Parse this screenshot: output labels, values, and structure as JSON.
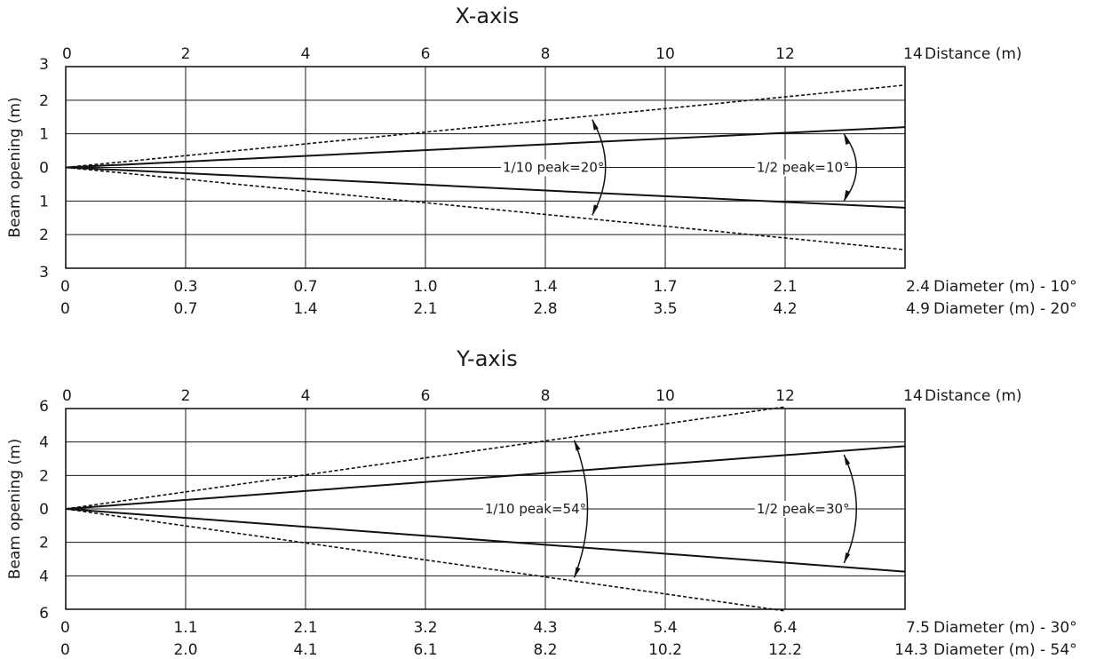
{
  "chart_data": [
    {
      "type": "line",
      "title": "X-axis",
      "top_axis": {
        "ticks": [
          0,
          2,
          4,
          6,
          8,
          10,
          12,
          14
        ],
        "label": "Distance (m)",
        "range": [
          0,
          14
        ]
      },
      "left_axis": {
        "ticks": [
          "3",
          "2",
          "1",
          "0",
          "1",
          "2",
          "3"
        ],
        "label": "Beam opening (m)",
        "range": [
          -3,
          3
        ]
      },
      "bottom_rows": [
        {
          "values": [
            "0",
            "0.3",
            "0.7",
            "1.0",
            "1.4",
            "1.7",
            "2.1",
            "2.4"
          ],
          "label": "Diameter (m) - 10°"
        },
        {
          "values": [
            "0",
            "0.7",
            "1.4",
            "2.1",
            "2.8",
            "3.5",
            "4.2",
            "4.9"
          ],
          "label": "Diameter (m) - 20°"
        }
      ],
      "series": [
        {
          "style": "solid",
          "x": [
            0,
            14
          ],
          "y_upper": [
            0,
            1.2
          ],
          "y_lower": [
            0,
            -1.2
          ]
        },
        {
          "style": "dashed",
          "x": [
            0,
            14
          ],
          "y_upper": [
            0,
            2.45
          ],
          "y_lower": [
            0,
            -2.45
          ]
        }
      ],
      "annotations": [
        {
          "text": "1/10 peak=20°",
          "x": 8.9
        },
        {
          "text": "1/2 peak=10°",
          "x": 13.1
        }
      ],
      "grid": true
    },
    {
      "type": "line",
      "title": "Y-axis",
      "top_axis": {
        "ticks": [
          0,
          2,
          4,
          6,
          8,
          10,
          12,
          14
        ],
        "label": "Distance (m)",
        "range": [
          0,
          14
        ]
      },
      "left_axis": {
        "ticks": [
          "6",
          "4",
          "2",
          "0",
          "2",
          "4",
          "6"
        ],
        "label": "Beam opening (m)",
        "range": [
          -6,
          6
        ]
      },
      "bottom_rows": [
        {
          "values": [
            "0",
            "1.1",
            "2.1",
            "3.2",
            "4.3",
            "5.4",
            "6.4",
            "7.5"
          ],
          "label": "Diameter (m) - 30°"
        },
        {
          "values": [
            "0",
            "2.0",
            "4.1",
            "6.1",
            "8.2",
            "10.2",
            "12.2",
            "14.3"
          ],
          "label": "Diameter (m) - 54°"
        }
      ],
      "series": [
        {
          "style": "solid",
          "x": [
            0,
            14
          ],
          "y_upper": [
            0,
            3.75
          ],
          "y_lower": [
            0,
            -3.75
          ]
        },
        {
          "style": "dashed",
          "x": [
            0,
            12
          ],
          "y_upper": [
            0,
            6.1
          ],
          "y_lower": [
            0,
            -6.1
          ]
        }
      ],
      "annotations": [
        {
          "text": "1/10 peak=54°",
          "x": 8.6
        },
        {
          "text": "1/2 peak=30°",
          "x": 13.1
        }
      ],
      "grid": true
    }
  ]
}
